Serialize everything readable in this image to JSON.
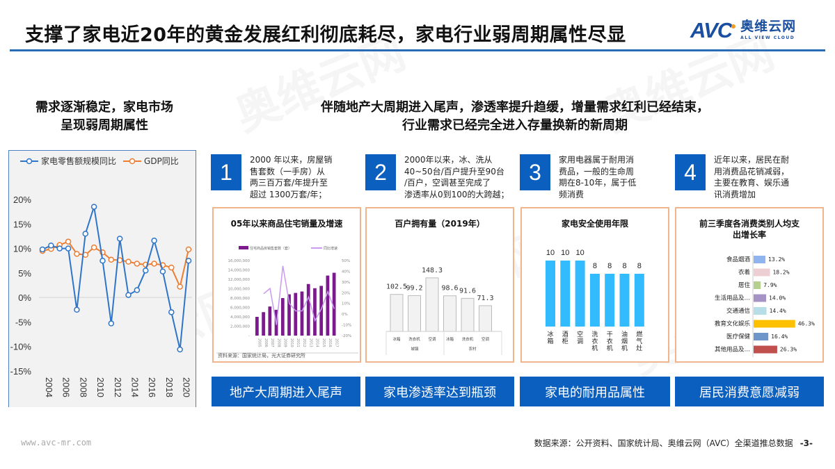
{
  "header": {
    "title": "支撑了家电近20年的黄金发展红利彻底耗尽，家电行业弱周期属性尽显",
    "logo": {
      "mark": "AVC",
      "cn": "奥维云网",
      "en": "ALL VIEW CLOUD"
    },
    "rule_color": "#2a6bb8"
  },
  "watermark": "奥维云网",
  "left": {
    "heading_line1": "需求逐渐稳定，家电市场",
    "heading_line2": "呈现弱周期属性"
  },
  "right": {
    "heading_line1": "伴随地产大周期进入尾声，渗透率提升趋缓，增量需求红利已经结束，",
    "heading_line2": "行业需求已经完全进入存量换新的新周期"
  },
  "points": [
    {
      "number": "1",
      "lines": [
        "2000 年以来，房屋销",
        "售套数（一手房）从",
        "两三百万套/年提升至",
        "超过 1300万套/年；"
      ]
    },
    {
      "number": "2",
      "lines": [
        "2000年以来，冰、洗从",
        "40~50台/百户提升至90台",
        "/百户，空调甚至完成了",
        "渗透率从0到100的大跨越；"
      ]
    },
    {
      "number": "3",
      "lines": [
        "家用电器属于耐用消",
        "费品，一般的生命周",
        "期在8-10年，属于低",
        "频消费"
      ]
    },
    {
      "number": "4",
      "lines": [
        "近年以来，居民在耐",
        "用消费品花销减弱，",
        "主要在教育、娱乐通",
        "讯消费增加"
      ]
    }
  ],
  "bottom_tags": [
    "地产大周期进入尾声",
    "家电渗透率达到瓶颈",
    "家电的耐用品属性",
    "居民消费意愿减弱"
  ],
  "footer": {
    "url": "www.avc-mr.com",
    "source": "数据来源：公开资料、国家统计局、奥维云网（AVC）全渠道推总数据",
    "page": "-3-"
  },
  "chart_data": [
    {
      "type": "line",
      "title": "",
      "legend_position": "top",
      "x": [
        2004,
        2005,
        2006,
        2007,
        2008,
        2009,
        2010,
        2011,
        2012,
        2013,
        2014,
        2015,
        2016,
        2017,
        2018,
        2019,
        2020,
        2021
      ],
      "x_tick_labels": [
        "2004",
        "2006",
        "2008",
        "2010",
        "2012",
        "2014",
        "2016",
        "2018",
        "2020"
      ],
      "y_tick_labels": [
        "20%",
        "15%",
        "10%",
        "5%",
        "0%",
        "-5%",
        "-10%",
        "-15%"
      ],
      "ylim": [
        -15,
        20
      ],
      "series": [
        {
          "name": "家电零售额规模同比",
          "color": "#2e75c9",
          "values": [
            9.8,
            10.6,
            10.0,
            10.0,
            -2.5,
            13.0,
            18.5,
            7.5,
            -5.3,
            12.0,
            0.5,
            1.5,
            5.5,
            11.6,
            5.3,
            -3.0,
            -10.6,
            7.5
          ]
        },
        {
          "name": "GDP同比",
          "color": "#ed7d31",
          "values": [
            9.5,
            9.9,
            10.7,
            11.4,
            8.9,
            8.7,
            10.2,
            9.2,
            7.7,
            7.6,
            7.3,
            6.9,
            6.7,
            6.9,
            6.6,
            6.1,
            2.2,
            9.8
          ]
        }
      ]
    },
    {
      "type": "bar",
      "title": "05年以来商品住宅销量及增速",
      "legend": [
        "住宅商品房销售套数（套）",
        "同比增速"
      ],
      "categories": [
        "2005",
        "2006",
        "2007",
        "2008",
        "2009",
        "2010",
        "2011",
        "2012",
        "2013",
        "2014",
        "2015",
        "2016",
        "2017"
      ],
      "series": [
        {
          "name": "住宅商品房销售套数（套）",
          "color": "#7a1a8c",
          "type": "bar",
          "values": [
            4000000,
            5000000,
            6200000,
            5500000,
            8000000,
            8800000,
            9100000,
            9400000,
            11000000,
            10100000,
            10600000,
            12800000,
            13400000
          ]
        },
        {
          "name": "同比增速",
          "color": "#c89af0",
          "type": "line",
          "values": [
            null,
            19,
            24,
            -10,
            45,
            10,
            3,
            3,
            16,
            -6,
            5,
            21,
            5
          ]
        }
      ],
      "y_left_ticks": [
        "16,000,000",
        "14,000,000",
        "12,000,000",
        "10,000,000",
        "8,000,000",
        "6,000,000",
        "4,000,000",
        "2,000,000",
        "-"
      ],
      "y_right_ticks": [
        "50%",
        "40%",
        "30%",
        "20%",
        "10%",
        "0%",
        "-10%",
        "-20%"
      ],
      "source_note": "资料来源：国家统计局，光大证券研究所"
    },
    {
      "type": "bar",
      "title": "百户拥有量（2019年）",
      "categories": [
        "冰箱",
        "洗衣机",
        "空调",
        "冰箱",
        "洗衣机",
        "空调"
      ],
      "groups": [
        {
          "name": "城镇",
          "span": 3
        },
        {
          "name": "农村",
          "span": 3
        }
      ],
      "values": [
        102.5,
        99.2,
        148.3,
        98.6,
        91.6,
        71.3
      ],
      "value_labels": [
        "102.5",
        "99.2",
        "148.3",
        "98.6",
        "91.6",
        "71.3"
      ],
      "color": "#f2f2f2"
    },
    {
      "type": "bar",
      "title": "家电安全使用年限",
      "categories": [
        "冰箱",
        "酒柜",
        "空调",
        "洗衣机",
        "干衣机",
        "油烟机",
        "燃气灶"
      ],
      "values": [
        10,
        10,
        10,
        8,
        8,
        8,
        8
      ],
      "color": "#33bbff"
    },
    {
      "type": "bar",
      "orientation": "horizontal",
      "title": "前三季度各消费类别人均支出增长率",
      "categories": [
        "食品烟酒",
        "衣着",
        "居住",
        "生活用品及…",
        "交通通信",
        "教育文化娱乐",
        "医疗保健",
        "其他用品及…"
      ],
      "values": [
        13.2,
        18.2,
        7.9,
        14.0,
        14.4,
        46.3,
        16.4,
        26.3
      ],
      "value_labels": [
        "13.2%",
        "18.2%",
        "7.9%",
        "14.0%",
        "14.4%",
        "46.3%",
        "16.4%",
        "26.3%"
      ],
      "colors": [
        "#8fb4ee",
        "#edcfd3",
        "#b5cf8f",
        "#a593c6",
        "#b7dde6",
        "#ffc000",
        "#6e96c8",
        "#c0504d"
      ]
    }
  ]
}
